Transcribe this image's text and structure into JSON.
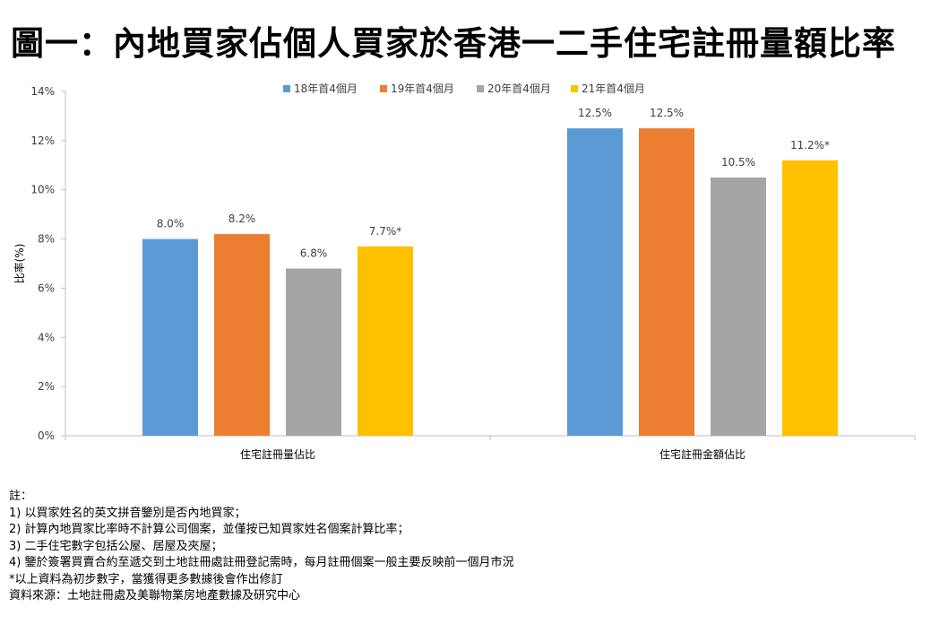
{
  "title": "圖一：內地買家佔個人買家於香港一二手住宅註冊量額比率",
  "chart_data": {
    "type": "bar",
    "categories": [
      "住宅註冊量佔比",
      "住宅註冊金額佔比"
    ],
    "series": [
      {
        "name": "18年首4個月",
        "color": "#5B9BD5",
        "values": [
          8.0,
          12.5
        ],
        "labels": [
          "8.0%",
          "12.5%"
        ]
      },
      {
        "name": "19年首4個月",
        "color": "#ED7D31",
        "values": [
          8.2,
          12.5
        ],
        "labels": [
          "8.2%",
          "12.5%"
        ]
      },
      {
        "name": "20年首4個月",
        "color": "#A5A5A5",
        "values": [
          6.8,
          10.5
        ],
        "labels": [
          "6.8%",
          "10.5%"
        ]
      },
      {
        "name": "21年首4個月",
        "color": "#FFC000",
        "values": [
          7.7,
          11.2
        ],
        "labels": [
          "7.7%*",
          "11.2%*"
        ]
      }
    ],
    "ylabel": "比率(%)",
    "ylim": [
      0,
      14
    ],
    "yticks": [
      "0%",
      "2%",
      "4%",
      "6%",
      "8%",
      "10%",
      "12%",
      "14%"
    ],
    "grid": false,
    "legend": "top"
  },
  "notes": {
    "heading": "註：",
    "lines": [
      "1) 以買家姓名的英文拼音鑒別是否內地買家；",
      "2) 計算內地買家比率時不計算公司個案，並僅按已知買家姓名個案計算比率；",
      "3) 二手住宅數字包括公屋、居屋及夾屋；",
      "4) 鑒於簽署買賣合約至遞交到土地註冊處註冊登記需時，每月註冊個案一般主要反映前一個月市況",
      "*以上資料為初步數字，當獲得更多數據後會作出修訂",
      "資料來源：土地註冊處及美聯物業房地產數據及研究中心"
    ]
  }
}
